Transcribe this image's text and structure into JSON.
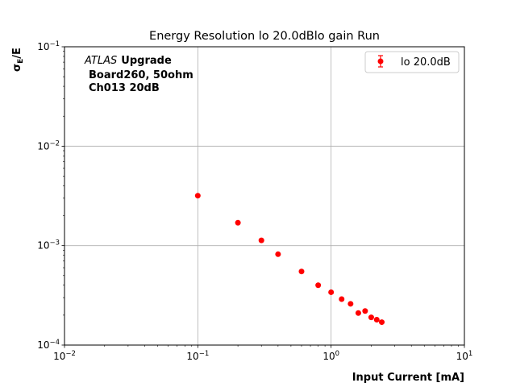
{
  "chart_data": {
    "type": "scatter",
    "title": "Energy Resolution lo 20.0dBlo gain Run",
    "xlabel": "Input Current [mA]",
    "ylabel": {
      "base": "σ",
      "sub": "E",
      "tail": "/E"
    },
    "xscale": "log",
    "yscale": "log",
    "xlim": [
      0.01,
      10
    ],
    "ylim": [
      0.0001,
      0.1
    ],
    "grid": true,
    "legend_position": "top-right",
    "x_ticks": [
      {
        "base": "10",
        "exp": "−2"
      },
      {
        "base": "10",
        "exp": "−1"
      },
      {
        "base": "10",
        "exp": "0"
      },
      {
        "base": "10",
        "exp": "1"
      }
    ],
    "y_ticks": [
      {
        "base": "10",
        "exp": "−4"
      },
      {
        "base": "10",
        "exp": "−3"
      },
      {
        "base": "10",
        "exp": "−2"
      },
      {
        "base": "10",
        "exp": "−1"
      }
    ],
    "series": [
      {
        "name": "lo 20.0dB",
        "color": "#ff0000",
        "marker": "circle",
        "x": [
          0.1,
          0.2,
          0.3,
          0.4,
          0.6,
          0.8,
          1.0,
          1.2,
          1.4,
          1.6,
          1.8,
          2.0,
          2.2,
          2.4
        ],
        "y": [
          0.00318,
          0.0017,
          0.00113,
          0.00082,
          0.00055,
          0.0004,
          0.00034,
          0.00029,
          0.00026,
          0.00021,
          0.00022,
          0.00019,
          0.00018,
          0.00017
        ]
      }
    ],
    "annotation": {
      "atlas": "ATLAS",
      "upgrade": "Upgrade",
      "line2": "Board260, 50ohm",
      "line3": "Ch013 20dB"
    }
  }
}
